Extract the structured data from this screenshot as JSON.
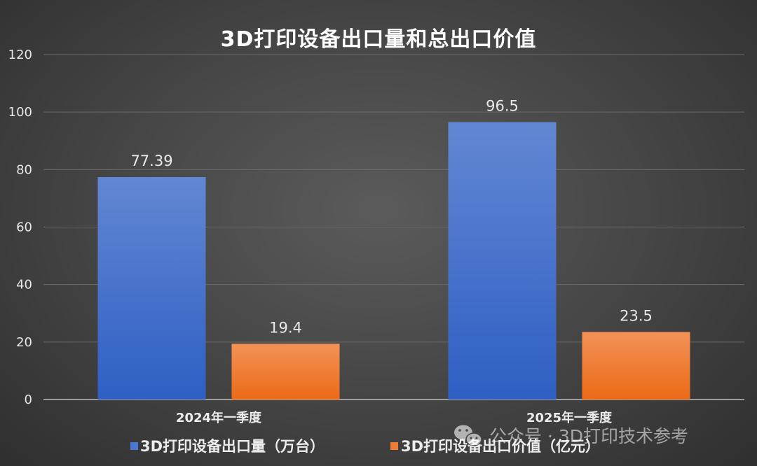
{
  "chart_data": {
    "type": "bar",
    "title": "3D打印设备出口量和总出口价值",
    "categories": [
      "2024年一季度",
      "2025年一季度"
    ],
    "series": [
      {
        "name": "3D打印设备出口量（万台）",
        "values": [
          77.39,
          96.5
        ],
        "labels": [
          "77.39",
          "96.5"
        ],
        "color": "#4a78d0"
      },
      {
        "name": "3D打印设备出口价值（亿元）",
        "values": [
          19.4,
          23.5
        ],
        "labels": [
          "19.4",
          "23.5"
        ],
        "color": "#ee7d31"
      }
    ],
    "ylim": [
      0,
      120
    ],
    "yticks": [
      0,
      20,
      40,
      60,
      80,
      100,
      120
    ],
    "grid": true,
    "legend_position": "bottom"
  },
  "watermark": {
    "text": "公众号 · 3D打印技术参考",
    "icon": "wechat-icon"
  }
}
